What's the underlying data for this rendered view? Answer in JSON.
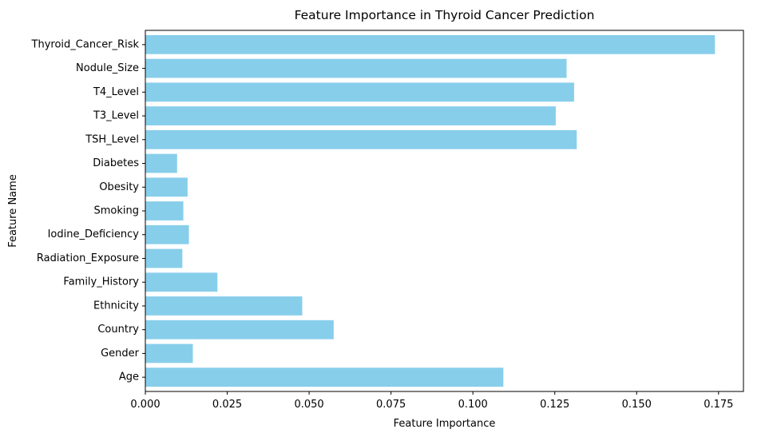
{
  "chart_data": {
    "type": "bar",
    "orientation": "horizontal",
    "title": "Feature Importance in Thyroid Cancer Prediction",
    "xlabel": "Feature Importance",
    "ylabel": "Feature Name",
    "categories": [
      "Age",
      "Gender",
      "Country",
      "Ethnicity",
      "Family_History",
      "Radiation_Exposure",
      "Iodine_Deficiency",
      "Smoking",
      "Obesity",
      "Diabetes",
      "TSH_Level",
      "T3_Level",
      "T4_Level",
      "Nodule_Size",
      "Thyroid_Cancer_Risk"
    ],
    "values": [
      0.1093,
      0.0145,
      0.0575,
      0.0479,
      0.022,
      0.0113,
      0.0133,
      0.0116,
      0.0129,
      0.0097,
      0.1317,
      0.1253,
      0.1309,
      0.1286,
      0.1739
    ],
    "xlim": [
      0,
      0.1826
    ],
    "xticks": [
      0.0,
      0.025,
      0.05,
      0.075,
      0.1,
      0.125,
      0.15,
      0.175
    ],
    "xtick_labels": [
      "0.000",
      "0.025",
      "0.050",
      "0.075",
      "0.100",
      "0.125",
      "0.150",
      "0.175"
    ],
    "bar_color": "#87ceeb",
    "grid": false,
    "legend": "none"
  }
}
